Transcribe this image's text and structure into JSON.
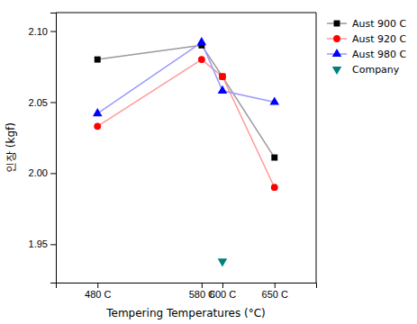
{
  "chart_data": {
    "type": "line",
    "xlabel": "Tempering Temperatures (°C)",
    "ylabel": "인장  (kgf)",
    "x": [
      480,
      580,
      600,
      650
    ],
    "xlim": [
      440,
      690
    ],
    "xticks": [
      {
        "value": 480,
        "label": "480 C"
      },
      {
        "value": 580,
        "label": "580 C"
      },
      {
        "value": 600,
        "label": "600 C"
      },
      {
        "value": 650,
        "label": "650 C"
      }
    ],
    "ylim": [
      1.923,
      2.113
    ],
    "yticks": [
      1.95,
      {
        "value": 2.0,
        "label": "2.00"
      },
      2.05,
      {
        "value": 2.1,
        "label": "2.10"
      }
    ],
    "grid": false,
    "legend": "upper right",
    "series": [
      {
        "name": "Aust 900 C",
        "color": "#000000",
        "marker": "square",
        "line_style": "solid",
        "values": [
          2.08,
          2.09,
          2.068,
          2.011
        ]
      },
      {
        "name": "Aust 920 C",
        "color": "#FF0000",
        "marker": "circle",
        "line_style": "solid",
        "values": [
          2.033,
          2.08,
          2.068,
          1.99
        ]
      },
      {
        "name": "Aust 980 C",
        "color": "#0000FF",
        "marker": "triangle-up",
        "line_style": "solid",
        "values": [
          2.042,
          2.092,
          2.058,
          2.05
        ]
      },
      {
        "name": "Company",
        "color": "#008080",
        "marker": "triangle-down",
        "line_style": "none",
        "values": [
          null,
          null,
          1.938,
          null
        ]
      }
    ]
  }
}
